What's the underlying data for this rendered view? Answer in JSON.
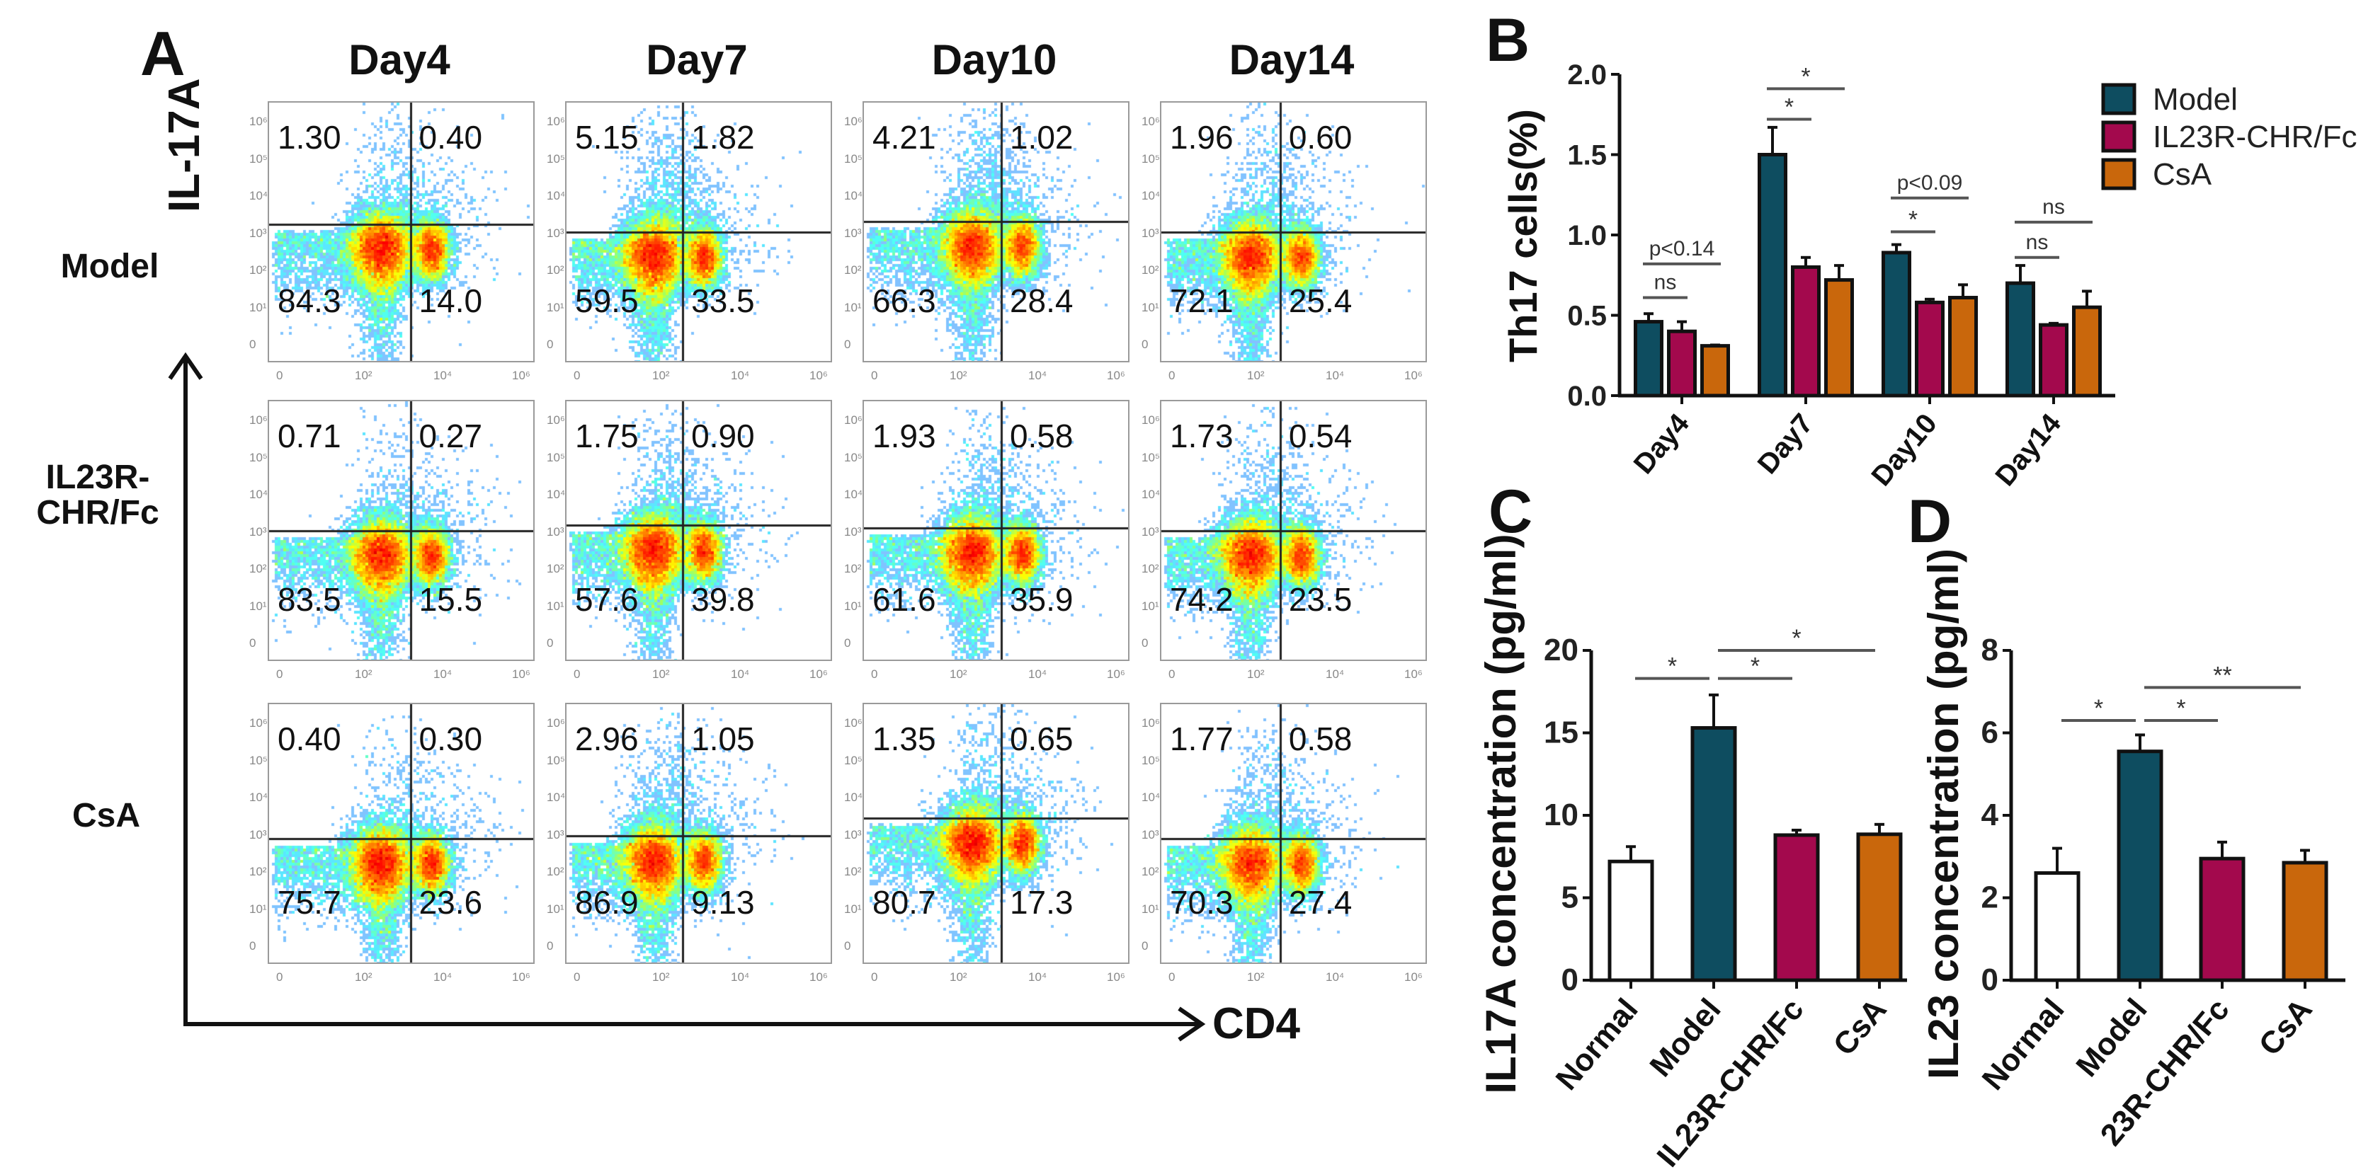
{
  "panel_a": {
    "label": "A",
    "columns": [
      "Day4",
      "Day7",
      "Day10",
      "Day14"
    ],
    "rows": [
      {
        "label_lines": [
          "Model"
        ]
      },
      {
        "label_lines": [
          "IL23R-",
          "CHR/Fc"
        ]
      },
      {
        "label_lines": [
          "CsA"
        ]
      }
    ],
    "y_axis_label": "IL-17A",
    "x_axis_label": "CD4",
    "y_ticks": [
      "0",
      "10¹",
      "10²",
      "10³",
      "10⁴",
      "10⁵",
      "10⁶"
    ],
    "x_ticks": [
      "0",
      "10²",
      "10⁴",
      "10⁶"
    ],
    "quadrants_order": [
      "upper-left",
      "upper-right",
      "lower-left",
      "lower-right"
    ],
    "quadrants": [
      [
        [
          "1.30",
          "0.40",
          "84.3",
          "14.0"
        ],
        [
          "5.15",
          "1.82",
          "59.5",
          "33.5"
        ],
        [
          "4.21",
          "1.02",
          "66.3",
          "28.4"
        ],
        [
          "1.96",
          "0.60",
          "72.1",
          "25.4"
        ]
      ],
      [
        [
          "0.71",
          "0.27",
          "83.5",
          "15.5"
        ],
        [
          "1.75",
          "0.90",
          "57.6",
          "39.8"
        ],
        [
          "1.93",
          "0.58",
          "61.6",
          "35.9"
        ],
        [
          "1.73",
          "0.54",
          "74.2",
          "23.5"
        ]
      ],
      [
        [
          "0.40",
          "0.30",
          "75.7",
          "23.6"
        ],
        [
          "2.96",
          "1.05",
          "86.9",
          "9.13"
        ],
        [
          "1.35",
          "0.65",
          "80.7",
          "17.3"
        ],
        [
          "1.77",
          "0.58",
          "70.3",
          "27.4"
        ]
      ]
    ]
  },
  "chart_data": [
    {
      "panel": "B",
      "type": "bar",
      "title": "",
      "ylabel": "Th17 cells(%)",
      "xlabel": "",
      "categories": [
        "Day4",
        "Day7",
        "Day10",
        "Day14"
      ],
      "ylim": [
        0,
        2.0
      ],
      "yticks": [
        "0.0",
        "0.5",
        "1.0",
        "1.5",
        "2.0"
      ],
      "legend_position": "top-right",
      "series": [
        {
          "name": "Model",
          "color": "#0e4d60",
          "values": [
            0.46,
            1.5,
            0.89,
            0.7
          ],
          "errors": [
            0.05,
            0.17,
            0.05,
            0.11
          ]
        },
        {
          "name": "IL23R-CHR/Fc",
          "color": "#a3094d",
          "values": [
            0.4,
            0.8,
            0.58,
            0.44
          ],
          "errors": [
            0.06,
            0.06,
            0.02,
            0.01
          ]
        },
        {
          "name": "CsA",
          "color": "#c9670c",
          "values": [
            0.31,
            0.72,
            0.61,
            0.55
          ],
          "errors": [
            0.005,
            0.09,
            0.08,
            0.1
          ]
        }
      ],
      "annotations": [
        {
          "category": 0,
          "from": 0,
          "to": 1,
          "y": 0.61,
          "text": "ns"
        },
        {
          "category": 0,
          "from": 0,
          "to": 2,
          "y": 0.82,
          "text": "p<0.14"
        },
        {
          "category": 1,
          "from": 0,
          "to": 1,
          "y": 1.72,
          "text": "*"
        },
        {
          "category": 1,
          "from": 0,
          "to": 2,
          "y": 1.91,
          "text": "*"
        },
        {
          "category": 2,
          "from": 0,
          "to": 1,
          "y": 1.02,
          "text": "*"
        },
        {
          "category": 2,
          "from": 0,
          "to": 2,
          "y": 1.23,
          "text": "p<0.09"
        },
        {
          "category": 3,
          "from": 0,
          "to": 1,
          "y": 0.86,
          "text": "ns"
        },
        {
          "category": 3,
          "from": 0,
          "to": 2,
          "y": 1.08,
          "text": "ns"
        }
      ]
    },
    {
      "panel": "C",
      "type": "bar",
      "title": "",
      "ylabel": "IL17A concentration (pg/ml)",
      "xlabel": "",
      "categories": [
        "Normal",
        "Model",
        "IL23R-CHR/Fc",
        "CsA"
      ],
      "colors": [
        "#ffffff",
        "#0e4d60",
        "#a3094d",
        "#c9670c"
      ],
      "values": [
        7.2,
        15.3,
        8.8,
        8.85
      ],
      "errors": [
        0.9,
        2.0,
        0.3,
        0.6
      ],
      "ylim": [
        0,
        20
      ],
      "yticks": [
        "0",
        "5",
        "10",
        "15",
        "20"
      ],
      "annotations": [
        {
          "from": 0,
          "to": 1,
          "y": 18.3,
          "text": "*"
        },
        {
          "from": 1,
          "to": 2,
          "y": 18.3,
          "text": "*"
        },
        {
          "from": 1,
          "to": 3,
          "y": 20.0,
          "text": "*"
        }
      ]
    },
    {
      "panel": "D",
      "type": "bar",
      "title": "",
      "ylabel": "IL23 concentration (pg/ml)",
      "xlabel": "",
      "categories": [
        "Normal",
        "Model",
        "23R-CHR/Fc",
        "CsA"
      ],
      "colors": [
        "#ffffff",
        "#0e4d60",
        "#a3094d",
        "#c9670c"
      ],
      "values": [
        2.6,
        5.55,
        2.95,
        2.85
      ],
      "errors": [
        0.6,
        0.4,
        0.4,
        0.3
      ],
      "ylim": [
        0,
        8
      ],
      "yticks": [
        "0",
        "2",
        "4",
        "6",
        "8"
      ],
      "annotations": [
        {
          "from": 0,
          "to": 1,
          "y": 6.3,
          "text": "*"
        },
        {
          "from": 1,
          "to": 2,
          "y": 6.3,
          "text": "*"
        },
        {
          "from": 1,
          "to": 3,
          "y": 7.1,
          "text": "**"
        }
      ]
    }
  ]
}
